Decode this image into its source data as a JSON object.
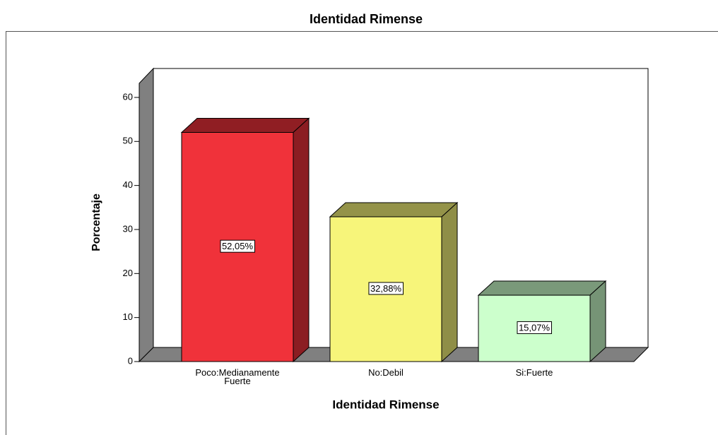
{
  "chart_data": {
    "type": "bar3d",
    "title": "Identidad Rimense",
    "x_label": "Identidad Rimense",
    "y_label": "Porcentaje",
    "categories": [
      "Poco:Medianamente Fuerte",
      "No:Debil",
      "Si:Fuerte"
    ],
    "values": [
      52.05,
      32.88,
      15.07
    ],
    "value_labels": [
      "52,05%",
      "32,88%",
      "15,07%"
    ],
    "colors": [
      "#f0323a",
      "#f7f57a",
      "#ccffcc"
    ],
    "ylim": [
      0,
      63.2
    ],
    "yticks": [
      0,
      10,
      20,
      30,
      40,
      50,
      60
    ]
  }
}
